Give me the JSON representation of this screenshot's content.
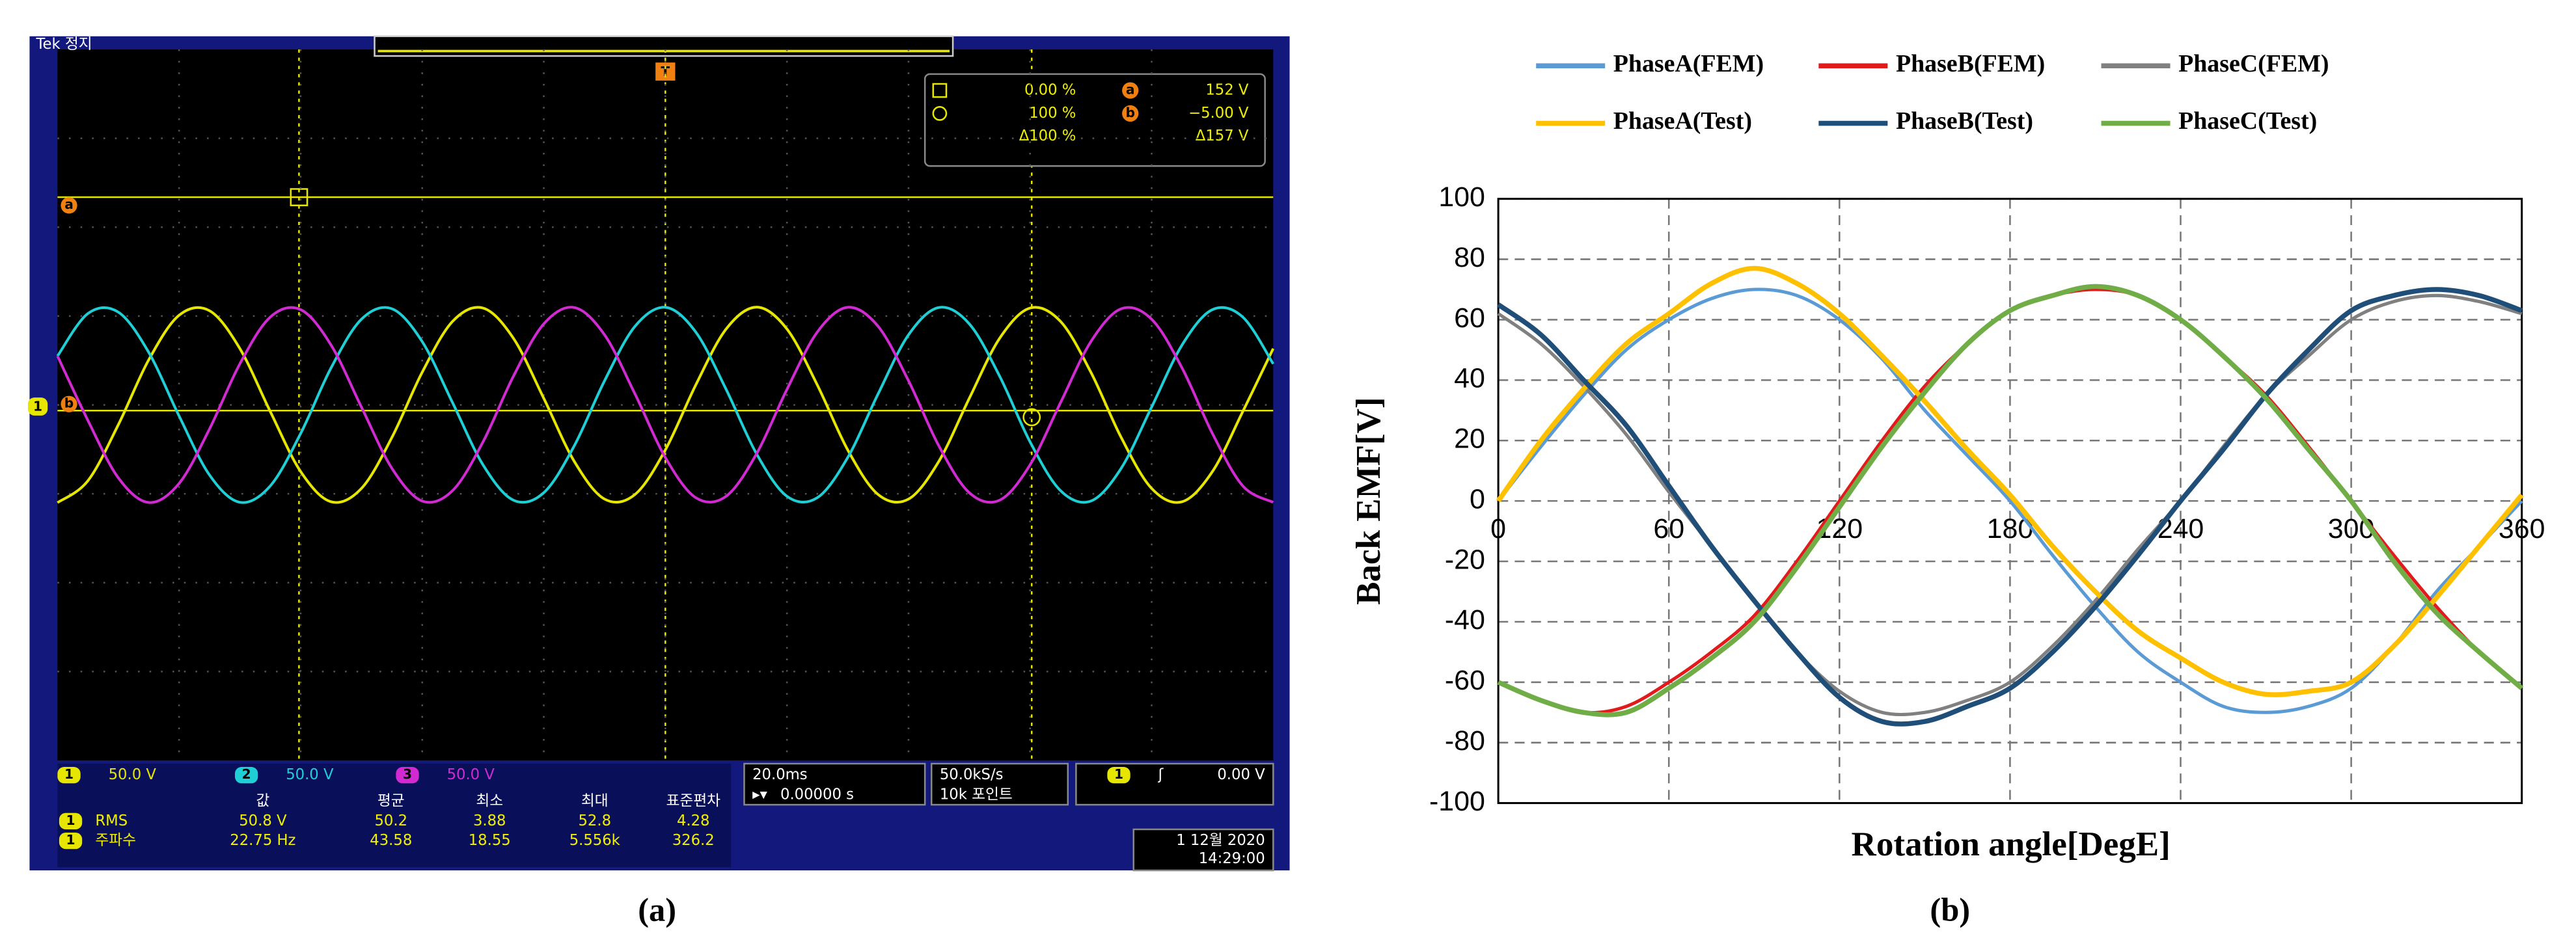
{
  "chart_data": [
    {
      "type": "scope",
      "panel_label": "(a)",
      "status": "Tek 정지",
      "trigger_marker": "T",
      "cursor_labels": [
        "a",
        "b"
      ],
      "cursor_readout": [
        [
          "0.00 %",
          "152 V"
        ],
        [
          "100 %",
          "−5.00 V"
        ],
        [
          "Δ100 %",
          "Δ157 V"
        ]
      ],
      "x": [
        0,
        5,
        10,
        15,
        20,
        25,
        30,
        35,
        40,
        45,
        50,
        55,
        60,
        65,
        70,
        75,
        80,
        85,
        90,
        95,
        100,
        105,
        110,
        115,
        120,
        125,
        130,
        135,
        140,
        145,
        150,
        155,
        160,
        165,
        170,
        175,
        180,
        185,
        190,
        195,
        200
      ],
      "xlim": [
        0,
        200
      ],
      "ylim": [
        -200,
        200
      ],
      "series": [
        {
          "name": "1",
          "scale": "50.0 V",
          "color": "#e6e600",
          "values": [
            -55,
            -42.7,
            -11.2,
            25.3,
            50.4,
            53,
            31.7,
            -3.7,
            -37.5,
            -54.5,
            -47,
            -18.4,
            18.4,
            47,
            54.5,
            37.5,
            3.7,
            -31.7,
            -53,
            -50.4,
            -25.3,
            11.2,
            42.7,
            55,
            42.7,
            11.2,
            -25.3,
            -50.4,
            -53,
            -31.7,
            3.7,
            37.5,
            54.5,
            47,
            18.4,
            -18.4,
            -47,
            -54.5,
            -37.5,
            -3.7,
            31.7
          ]
        },
        {
          "name": "2",
          "scale": "50.0 V",
          "color": "#1ecfd6",
          "values": [
            27.5,
            51.4,
            52.2,
            29.6,
            -6.2,
            -39.4,
            -54.8,
            -45.6,
            -16.1,
            20.8,
            48.2,
            54.1,
            35.6,
            1.2,
            -33.7,
            -53.6,
            -49.4,
            -23.1,
            13.6,
            44.2,
            54.9,
            41,
            8.7,
            -27.5,
            -51.4,
            -52.2,
            -29.6,
            6.2,
            39.4,
            54.8,
            45.6,
            16.1,
            -20.8,
            -48.2,
            -54.1,
            -35.6,
            -1.2,
            33.7,
            53.6,
            49.4,
            23.1
          ]
        },
        {
          "name": "3",
          "scale": "50.0 V",
          "color": "#d22ad2",
          "values": [
            27.5,
            -8.7,
            -41,
            -54.9,
            -44.2,
            -13.6,
            23.1,
            49.4,
            53.6,
            33.7,
            -1.2,
            -35.6,
            -54.1,
            -48.2,
            -20.8,
            16.1,
            45.6,
            54.8,
            39.4,
            6.2,
            -29.6,
            -52.2,
            -51.4,
            -27.5,
            8.7,
            41,
            54.9,
            44.2,
            13.6,
            -23.1,
            -49.4,
            -53.6,
            -33.7,
            1.2,
            35.6,
            54.1,
            48.2,
            20.8,
            -16.1,
            -45.6,
            -54.8
          ]
        }
      ],
      "horizontal": {
        "time_div": "20.0ms",
        "position": "0.00000 s"
      },
      "acquisition": {
        "rate": "50.0kS/s",
        "length": "10k 포인트"
      },
      "trigger": {
        "source": "1",
        "level": "0.00 V"
      },
      "measurements": {
        "header": [
          "값",
          "평균",
          "최소",
          "최대",
          "표준편차"
        ],
        "rows": [
          {
            "source": "1",
            "label": "RMS",
            "cells": [
              "50.8 V",
              "50.2",
              "3.88",
              "52.8",
              "4.28"
            ]
          },
          {
            "source": "1",
            "label": "주파수",
            "cells": [
              "22.75 Hz",
              "43.58",
              "18.55",
              "5.556k",
              "326.2"
            ]
          }
        ]
      },
      "date": "1 12월 2020",
      "time": "14:29:00"
    },
    {
      "type": "line",
      "panel_label": "(b)",
      "x_label": "Rotation angle[DegE]",
      "y_label": "Back EMF[V]",
      "x": [
        0,
        15,
        30,
        45,
        60,
        75,
        90,
        105,
        120,
        135,
        150,
        165,
        180,
        195,
        210,
        225,
        240,
        255,
        270,
        285,
        300,
        315,
        330,
        345,
        360
      ],
      "xlim": [
        0,
        360
      ],
      "xticks": [
        0,
        60,
        120,
        180,
        240,
        300,
        360
      ],
      "ylim": [
        -100,
        100
      ],
      "yticks": [
        -100,
        -80,
        -60,
        -40,
        -20,
        0,
        20,
        40,
        60,
        80,
        100
      ],
      "grid": true,
      "series": [
        {
          "name": "PhaseA(FEM)",
          "color": "#5b9bd5",
          "values": [
            0,
            18,
            35,
            50,
            60,
            67,
            70,
            68,
            60,
            47,
            30,
            15,
            0,
            -18,
            -35,
            -50,
            -60,
            -68,
            -70,
            -68,
            -62,
            -48,
            -30,
            -15,
            0
          ]
        },
        {
          "name": "PhaseB(FEM)",
          "color": "#e31a1c",
          "values": [
            -60,
            -66,
            -70,
            -68,
            -60,
            -50,
            -38,
            -20,
            0,
            20,
            38,
            52,
            63,
            68,
            70,
            68,
            60,
            48,
            35,
            18,
            0,
            -18,
            -35,
            -50,
            -62
          ]
        },
        {
          "name": "PhaseC(FEM)",
          "color": "#808080",
          "values": [
            62,
            52,
            38,
            22,
            3,
            -15,
            -33,
            -50,
            -63,
            -70,
            -70,
            -66,
            -60,
            -48,
            -33,
            -16,
            0,
            18,
            35,
            48,
            60,
            66,
            68,
            66,
            62
          ]
        },
        {
          "name": "PhaseA(Test)",
          "color": "#ffc000",
          "values": [
            0,
            20,
            37,
            52,
            62,
            72,
            77,
            72,
            62,
            48,
            33,
            17,
            2,
            -15,
            -30,
            -43,
            -52,
            -60,
            -64,
            -63,
            -60,
            -48,
            -32,
            -15,
            2
          ]
        },
        {
          "name": "PhaseB(Test)",
          "color": "#1f4e79",
          "values": [
            65,
            55,
            40,
            25,
            5,
            -15,
            -33,
            -50,
            -65,
            -73,
            -73,
            -68,
            -62,
            -50,
            -35,
            -18,
            0,
            17,
            35,
            50,
            63,
            68,
            70,
            68,
            63
          ]
        },
        {
          "name": "PhaseC(Test)",
          "color": "#70ad47",
          "values": [
            -60,
            -66,
            -70,
            -70,
            -62,
            -52,
            -40,
            -22,
            -2,
            18,
            36,
            52,
            63,
            68,
            71,
            68,
            60,
            48,
            34,
            17,
            0,
            -20,
            -37,
            -50,
            -62
          ]
        }
      ]
    }
  ]
}
